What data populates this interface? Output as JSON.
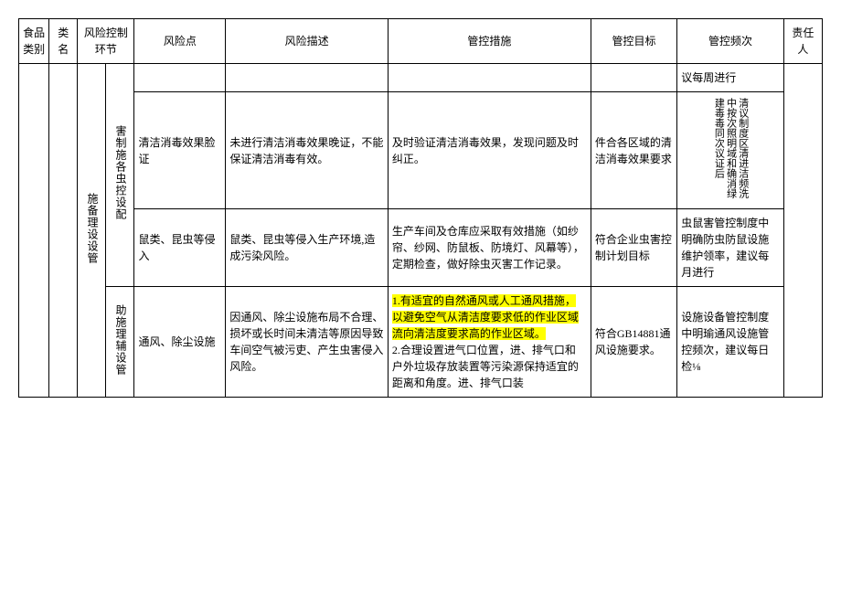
{
  "table": {
    "headers": {
      "category": "食品类别",
      "name": "类名",
      "control_link": "风险控制环节",
      "risk_point": "风险点",
      "risk_desc": "风险描述",
      "control_measure": "管控措施",
      "control_target": "管控目标",
      "control_freq": "管控频次",
      "responsible": "责任人"
    },
    "row_group_labels": {
      "facility_mgmt": "施备理设设管",
      "pest_control": "害制施各虫控设配",
      "aux_facility": "助施理辅设管"
    },
    "rows": [
      {
        "risk_point": "",
        "risk_desc": "",
        "control_measure": "",
        "control_target": "",
        "control_freq": "议每周进行"
      },
      {
        "risk_point": "清洁消毒效果脸证",
        "risk_desc": "未进行清洁消毒效果晚证，不能保证清洁消毒有效。",
        "control_measure": "及时验证清洁消毒效果，发现问题及时纠正。",
        "control_target": "件合各区域的清洁消毒效果要求",
        "control_freq": "清议制度区清进洁频洗中按次照明域和确消绿建毒毒同次议证后"
      },
      {
        "risk_point": "鼠类、昆虫等侵入",
        "risk_desc": "鼠类、昆虫等侵入生产环境,造成污染风险。",
        "control_measure": "生产车间及仓库应采取有效措施（如纱帘、纱网、防鼠板、防境灯、风幕等），定期检查，做好除虫灭害工作记录。",
        "control_target": "符合企业虫害控制计划目标",
        "control_freq": "虫鼠害管控制度中明确防虫防鼠设施维护领率，建议每月进行"
      },
      {
        "risk_point": "通风、除尘设施",
        "risk_desc": "因通风、除尘设施布局不合理、损坏或长时间未清洁等原因导致车间空气被污吏、产生虫害侵入风险。",
        "control_measure_hl": "1.有适宜的自然通风或人工通风措施，以避免空气从清洁度要求低的作业区域流向清洁度要求高的作业区域。",
        "control_measure_rest": "2.合理设置进气口位置，进、排气口和户外垃圾存放装置等污染源保持适宜的距离和角度。进、排气口装",
        "control_target": "符合GB14881通风设施要求。",
        "control_freq": "设施设备管控制度中明瑜通风设施管控频次，建议每日检⅛"
      }
    ]
  },
  "styling": {
    "border_color": "#000000",
    "background_color": "#ffffff",
    "highlight_color": "#ffff00",
    "font_family": "SimSun",
    "font_size_body": 12,
    "font_size_header": 12
  }
}
